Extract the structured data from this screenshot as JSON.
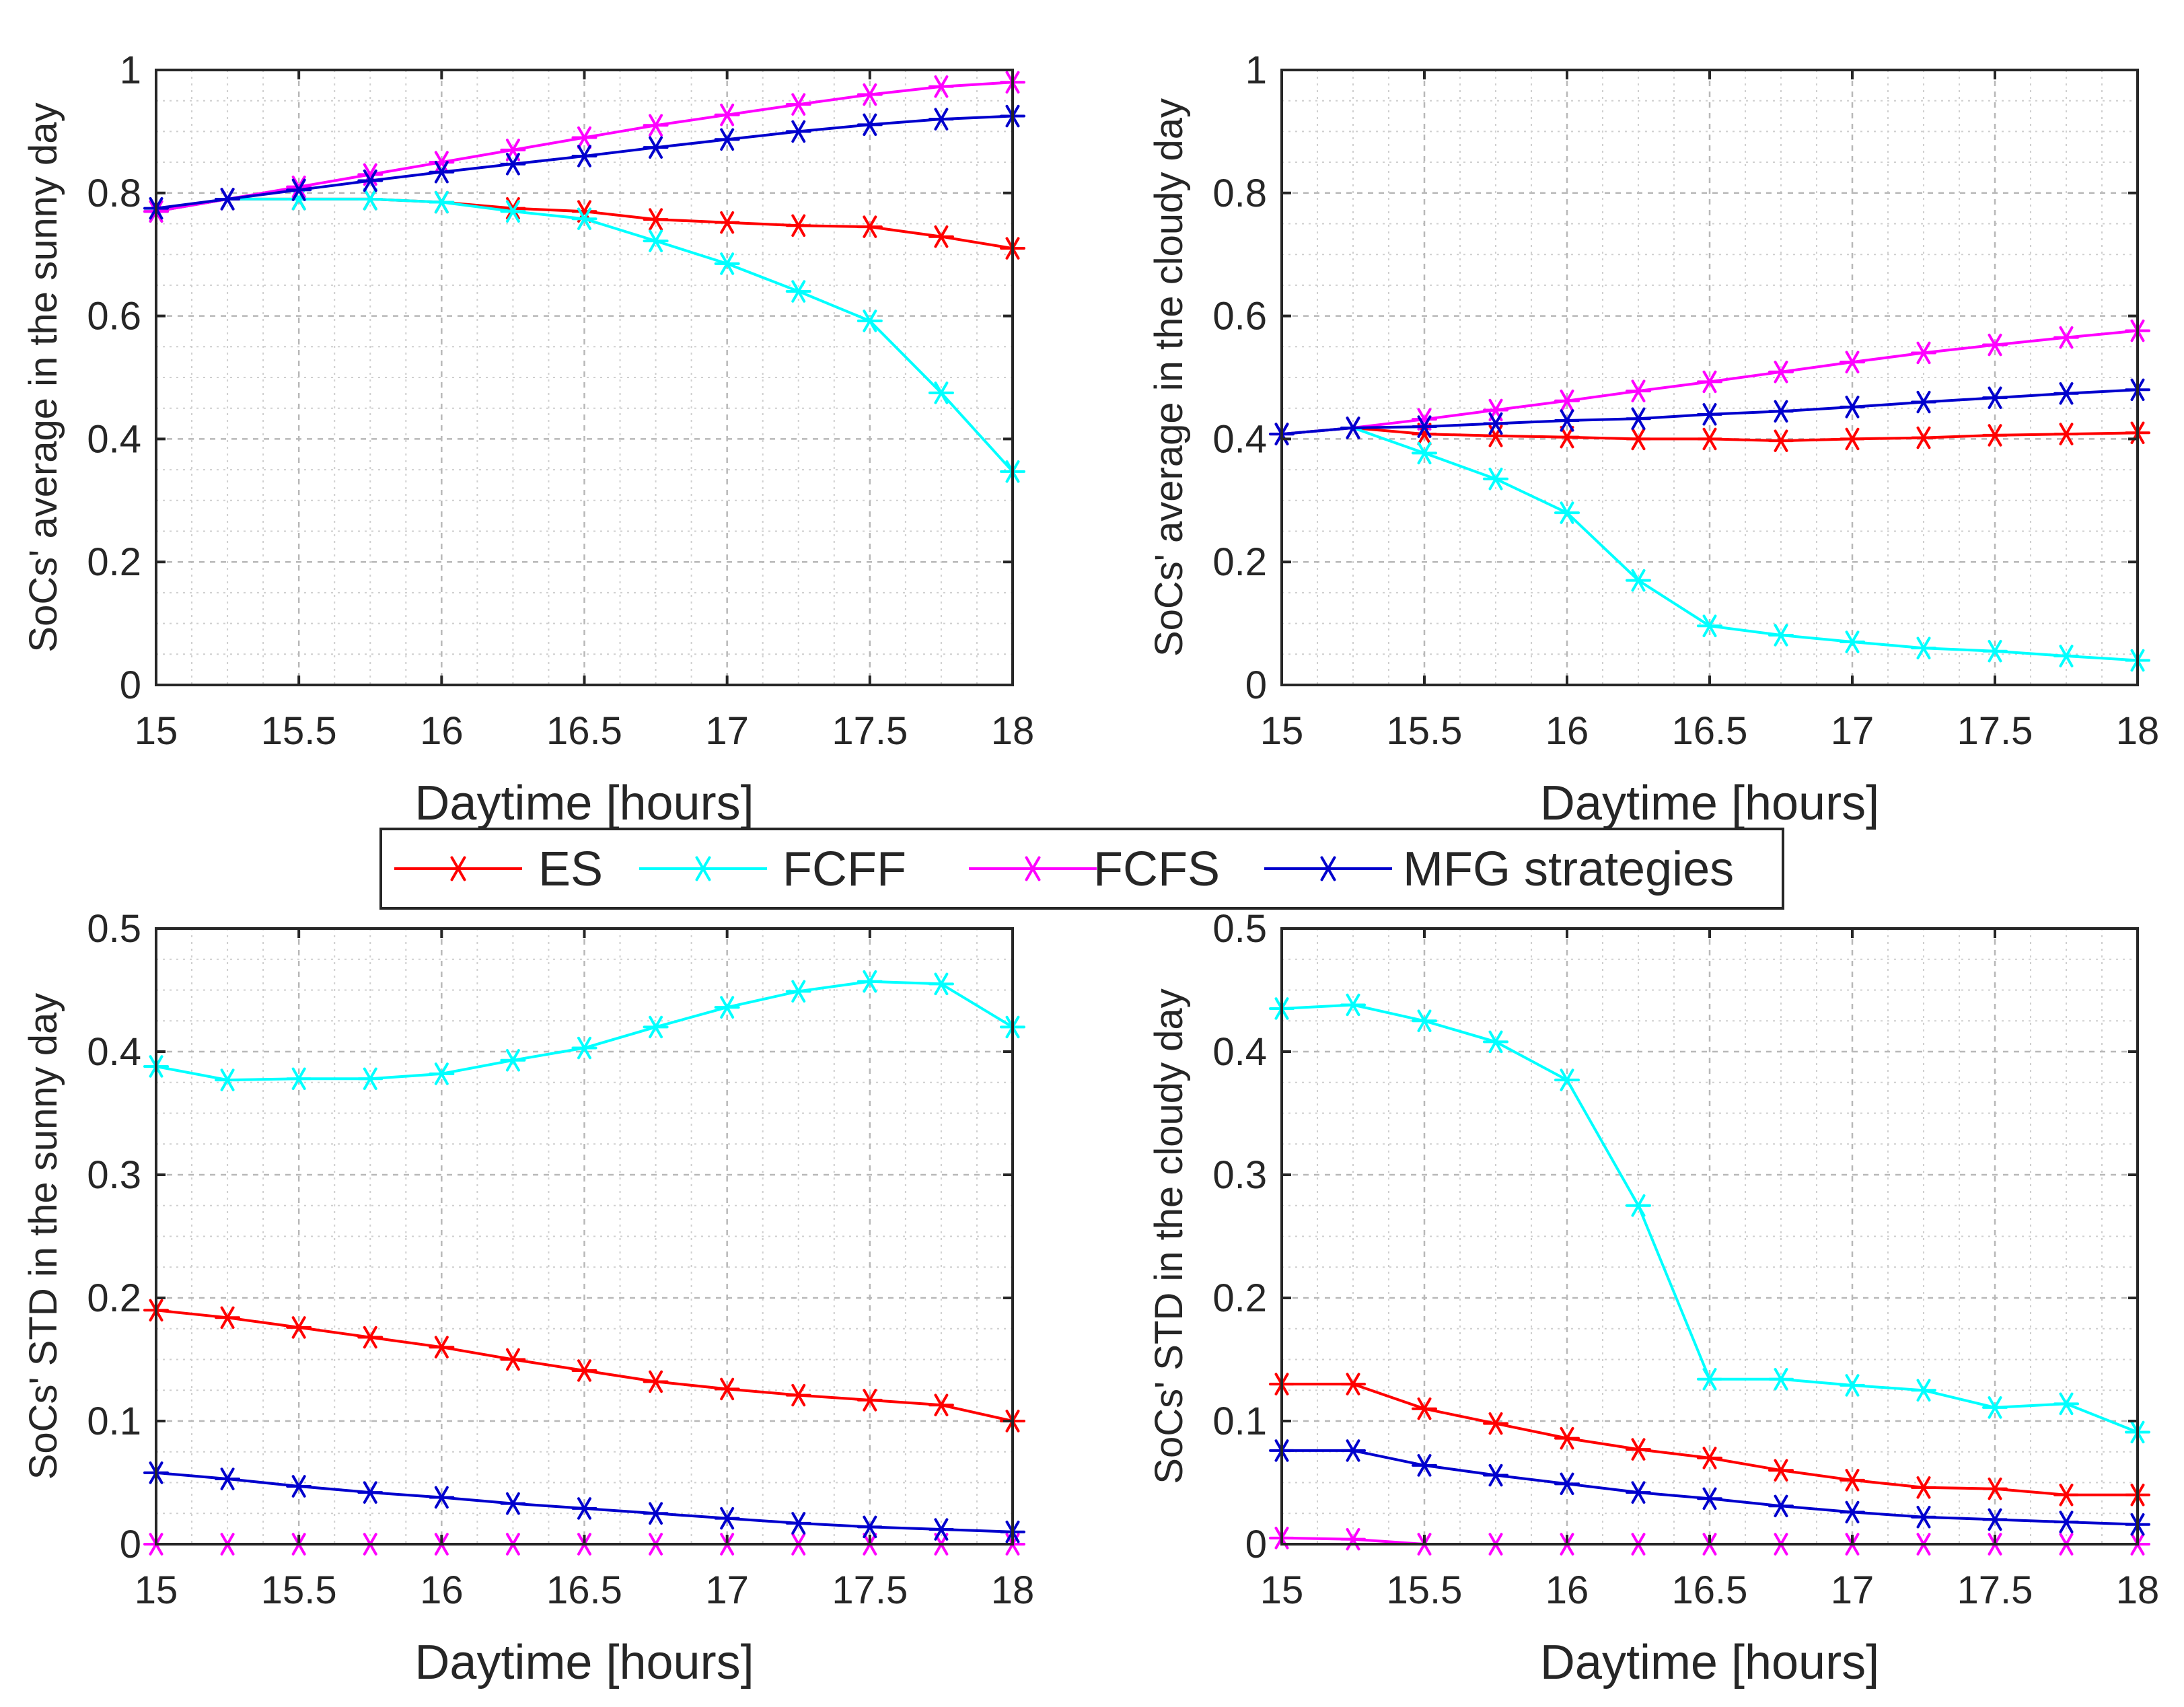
{
  "legend": {
    "entries": [
      {
        "name": "ES",
        "color": "#ff0000"
      },
      {
        "name": "FCFF",
        "color": "#00ffff"
      },
      {
        "name": "FCFS",
        "color": "#ff00ff"
      },
      {
        "name": "MFG strategies",
        "color": "#0000cd"
      }
    ]
  },
  "chart_data": [
    {
      "type": "line",
      "id": "sunny-avg",
      "title": "",
      "xlabel": "Daytime [hours]",
      "ylabel": "SoCs' average  in the sunny day",
      "xlim": [
        15,
        18
      ],
      "ylim": [
        0,
        1
      ],
      "xticks": [
        15,
        15.5,
        16,
        16.5,
        17,
        17.5,
        18
      ],
      "xtick_labels": [
        "15",
        "15.5",
        "16",
        "16.5",
        "17",
        "17.5",
        "18"
      ],
      "yticks": [
        0,
        0.2,
        0.4,
        0.6,
        0.8,
        1
      ],
      "ytick_labels": [
        "0",
        "0.2",
        "0.4",
        "0.6",
        "0.8",
        "1"
      ],
      "grid": true,
      "x": [
        15,
        15.25,
        15.5,
        15.75,
        16,
        16.25,
        16.5,
        16.75,
        17,
        17.25,
        17.5,
        17.75,
        18
      ],
      "series": [
        {
          "name": "ES",
          "color": "#ff0000",
          "values": [
            0.77,
            0.79,
            0.79,
            0.79,
            0.785,
            0.775,
            0.77,
            0.757,
            0.752,
            0.747,
            0.745,
            0.729,
            0.71
          ]
        },
        {
          "name": "FCFF",
          "color": "#00ffff",
          "values": [
            0.77,
            0.79,
            0.79,
            0.79,
            0.785,
            0.77,
            0.758,
            0.722,
            0.685,
            0.64,
            0.592,
            0.475,
            0.347
          ]
        },
        {
          "name": "FCFS",
          "color": "#ff00ff",
          "values": [
            0.77,
            0.79,
            0.81,
            0.83,
            0.85,
            0.87,
            0.89,
            0.91,
            0.927,
            0.944,
            0.96,
            0.973,
            0.98
          ]
        },
        {
          "name": "MFG strategies",
          "color": "#0000cd",
          "values": [
            0.775,
            0.79,
            0.805,
            0.82,
            0.834,
            0.847,
            0.86,
            0.874,
            0.887,
            0.9,
            0.911,
            0.92,
            0.925
          ]
        }
      ]
    },
    {
      "type": "line",
      "id": "cloudy-avg",
      "title": "",
      "xlabel": "Daytime [hours]",
      "ylabel": "SoCs' average in the cloudy day",
      "xlim": [
        15,
        18
      ],
      "ylim": [
        0,
        1
      ],
      "xticks": [
        15,
        15.5,
        16,
        16.5,
        17,
        17.5,
        18
      ],
      "xtick_labels": [
        "15",
        "15.5",
        "16",
        "16.5",
        "17",
        "17.5",
        "18"
      ],
      "yticks": [
        0,
        0.2,
        0.4,
        0.6,
        0.8,
        1
      ],
      "ytick_labels": [
        "0",
        "0.2",
        "0.4",
        "0.6",
        "0.8",
        "1"
      ],
      "grid": true,
      "x": [
        15,
        15.25,
        15.5,
        15.75,
        16,
        16.25,
        16.5,
        16.75,
        17,
        17.25,
        17.5,
        17.75,
        18
      ],
      "series": [
        {
          "name": "ES",
          "color": "#ff0000",
          "values": [
            0.408,
            0.418,
            0.408,
            0.405,
            0.403,
            0.4,
            0.4,
            0.397,
            0.4,
            0.402,
            0.406,
            0.408,
            0.41
          ]
        },
        {
          "name": "FCFF",
          "color": "#00ffff",
          "values": [
            0.408,
            0.418,
            0.377,
            0.335,
            0.28,
            0.17,
            0.096,
            0.081,
            0.07,
            0.06,
            0.055,
            0.047,
            0.04
          ]
        },
        {
          "name": "FCFS",
          "color": "#ff00ff",
          "values": [
            0.408,
            0.418,
            0.432,
            0.447,
            0.462,
            0.478,
            0.493,
            0.509,
            0.525,
            0.54,
            0.553,
            0.565,
            0.576
          ]
        },
        {
          "name": "MFG strategies",
          "color": "#0000cd",
          "values": [
            0.408,
            0.418,
            0.42,
            0.425,
            0.43,
            0.433,
            0.44,
            0.445,
            0.452,
            0.46,
            0.467,
            0.474,
            0.48
          ]
        }
      ]
    },
    {
      "type": "line",
      "id": "sunny-std",
      "title": "",
      "xlabel": "Daytime [hours]",
      "ylabel": "SoCs' STD  in the sunny day",
      "xlim": [
        15,
        18
      ],
      "ylim": [
        0,
        0.5
      ],
      "xticks": [
        15,
        15.5,
        16,
        16.5,
        17,
        17.5,
        18
      ],
      "xtick_labels": [
        "15",
        "15.5",
        "16",
        "16.5",
        "17",
        "17.5",
        "18"
      ],
      "yticks": [
        0,
        0.1,
        0.2,
        0.3,
        0.4,
        0.5
      ],
      "ytick_labels": [
        "0",
        "0.1",
        "0.2",
        "0.3",
        "0.4",
        "0.5"
      ],
      "grid": true,
      "x": [
        15,
        15.25,
        15.5,
        15.75,
        16,
        16.25,
        16.5,
        16.75,
        17,
        17.25,
        17.5,
        17.75,
        18
      ],
      "series": [
        {
          "name": "ES",
          "color": "#ff0000",
          "values": [
            0.19,
            0.184,
            0.176,
            0.168,
            0.16,
            0.15,
            0.141,
            0.132,
            0.126,
            0.121,
            0.117,
            0.113,
            0.1
          ]
        },
        {
          "name": "FCFF",
          "color": "#00ffff",
          "values": [
            0.388,
            0.377,
            0.378,
            0.378,
            0.382,
            0.393,
            0.403,
            0.42,
            0.436,
            0.449,
            0.457,
            0.455,
            0.42
          ]
        },
        {
          "name": "FCFS",
          "color": "#ff00ff",
          "values": [
            0,
            0,
            0,
            0,
            0,
            0,
            0,
            0,
            0,
            0,
            0,
            0,
            0
          ]
        },
        {
          "name": "MFG strategies",
          "color": "#0000cd",
          "values": [
            0.058,
            0.053,
            0.047,
            0.042,
            0.038,
            0.033,
            0.029,
            0.025,
            0.021,
            0.017,
            0.014,
            0.012,
            0.01
          ]
        }
      ]
    },
    {
      "type": "line",
      "id": "cloudy-std",
      "title": "",
      "xlabel": "Daytime [hours]",
      "ylabel": "SoCs' STD  in the cloudy day",
      "xlim": [
        15,
        18
      ],
      "ylim": [
        0,
        0.5
      ],
      "xticks": [
        15,
        15.5,
        16,
        16.5,
        17,
        17.5,
        18
      ],
      "xtick_labels": [
        "15",
        "15.5",
        "16",
        "16.5",
        "17",
        "17.5",
        "18"
      ],
      "yticks": [
        0,
        0.1,
        0.2,
        0.3,
        0.4,
        0.5
      ],
      "ytick_labels": [
        "0",
        "0.1",
        "0.2",
        "0.3",
        "0.4",
        "0.5"
      ],
      "grid": true,
      "x": [
        15,
        15.25,
        15.5,
        15.75,
        16,
        16.25,
        16.5,
        16.75,
        17,
        17.25,
        17.5,
        17.75,
        18
      ],
      "series": [
        {
          "name": "ES",
          "color": "#ff0000",
          "values": [
            0.13,
            0.13,
            0.11,
            0.098,
            0.086,
            0.077,
            0.07,
            0.06,
            0.052,
            0.046,
            0.045,
            0.04,
            0.04
          ]
        },
        {
          "name": "FCFF",
          "color": "#00ffff",
          "values": [
            0.435,
            0.438,
            0.425,
            0.408,
            0.377,
            0.275,
            0.134,
            0.134,
            0.129,
            0.125,
            0.111,
            0.114,
            0.091
          ]
        },
        {
          "name": "FCFS",
          "color": "#ff00ff",
          "values": [
            0.005,
            0.004,
            0,
            0,
            0,
            0,
            0,
            0,
            0,
            0,
            0,
            0,
            0
          ]
        },
        {
          "name": "MFG strategies",
          "color": "#0000cd",
          "values": [
            0.076,
            0.076,
            0.064,
            0.056,
            0.049,
            0.042,
            0.037,
            0.031,
            0.026,
            0.022,
            0.02,
            0.018,
            0.016
          ]
        }
      ]
    }
  ]
}
